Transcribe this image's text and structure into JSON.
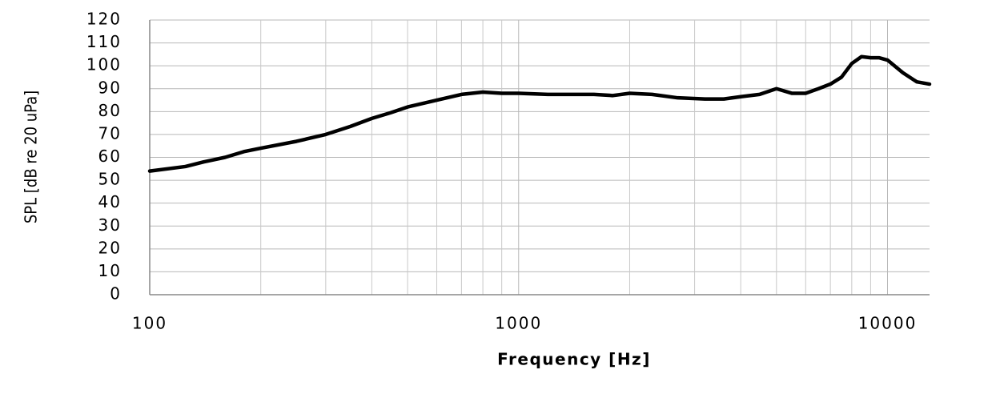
{
  "chart_data": {
    "type": "line",
    "x_label": "Frequency [Hz]",
    "y_label": "SPL [dB re 20 uPa]",
    "x_scale": "log",
    "grid": true,
    "minor_grid": true,
    "xlim": [
      100,
      13000
    ],
    "xticks": [
      100,
      1000,
      10000
    ],
    "ylim": [
      0,
      120
    ],
    "yticks": [
      0,
      10,
      20,
      30,
      40,
      50,
      60,
      70,
      80,
      90,
      100,
      110,
      120
    ],
    "series": [
      {
        "color": "#000000",
        "x": [
          100,
          125,
          140,
          160,
          180,
          200,
          250,
          300,
          350,
          400,
          450,
          500,
          600,
          700,
          800,
          900,
          1000,
          1200,
          1400,
          1600,
          1800,
          2000,
          2300,
          2700,
          3200,
          3600,
          4000,
          4500,
          5000,
          5500,
          6000,
          6500,
          7000,
          7500,
          8000,
          8500,
          9000,
          9500,
          10000,
          11000,
          12000,
          13000
        ],
        "values": [
          54,
          56,
          58,
          60,
          62.5,
          64,
          67,
          70,
          73.5,
          77,
          79.5,
          82,
          85,
          87.5,
          88.5,
          88,
          88,
          87.5,
          87.5,
          87.5,
          87,
          88,
          87.5,
          86,
          85.5,
          85.5,
          86.5,
          87.5,
          90,
          88,
          88,
          90,
          92,
          95,
          101,
          104,
          103.5,
          103.5,
          102.5,
          97,
          93,
          92
        ]
      }
    ]
  }
}
